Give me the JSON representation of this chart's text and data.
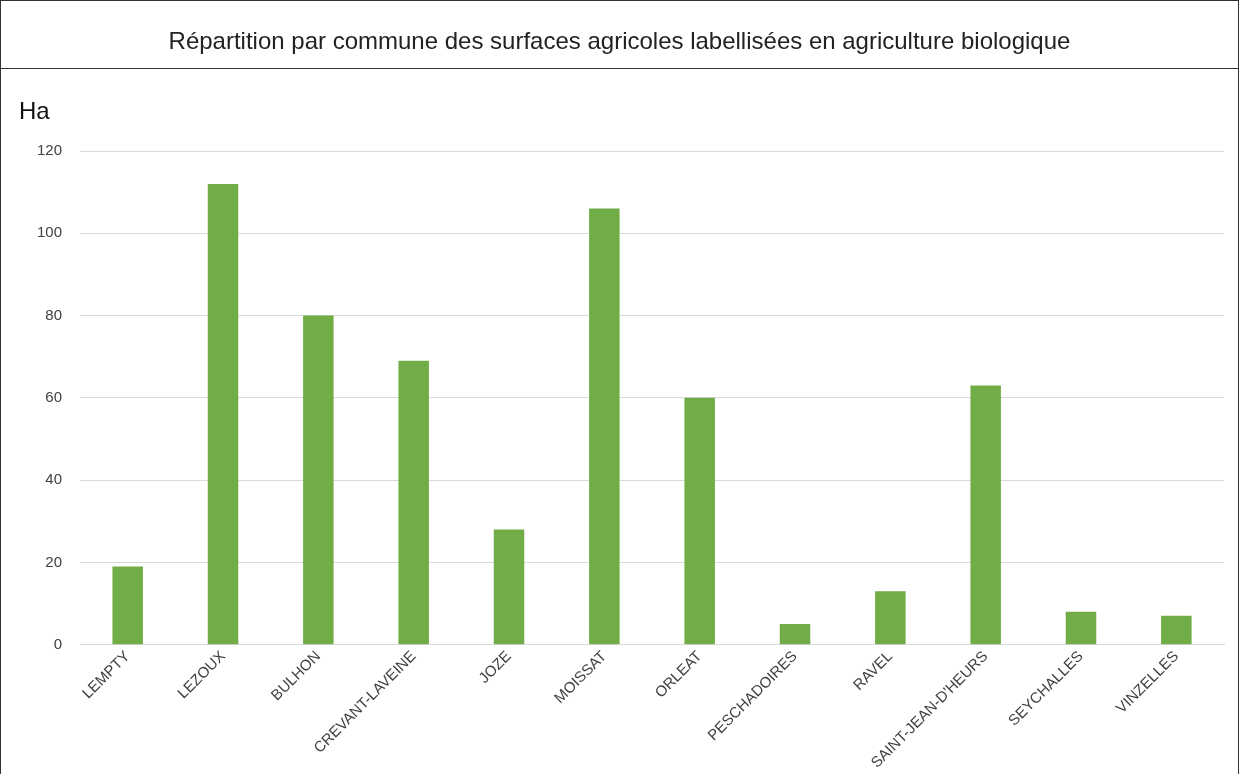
{
  "chart_data": {
    "type": "bar",
    "title": "Répartition par commune des surfaces agricoles labellisées en agriculture biologique",
    "ylabel": "Ha",
    "categories": [
      "LEMPTY",
      "LEZOUX",
      "BULHON",
      "CREVANT-LAVEINE",
      "JOZE",
      "MOISSAT",
      "ORLEAT",
      "PESCHADOIRES",
      "RAVEL",
      "SAINT-JEAN-D'HEURS",
      "SEYCHALLES",
      "VINZELLES"
    ],
    "values": [
      19,
      112,
      80,
      69,
      28,
      106,
      60,
      5,
      13,
      63,
      8,
      7
    ],
    "color": "#70ad47",
    "ylim": [
      0,
      120
    ],
    "yticks": [
      0,
      20,
      40,
      60,
      80,
      100,
      120
    ],
    "grid": "y"
  }
}
